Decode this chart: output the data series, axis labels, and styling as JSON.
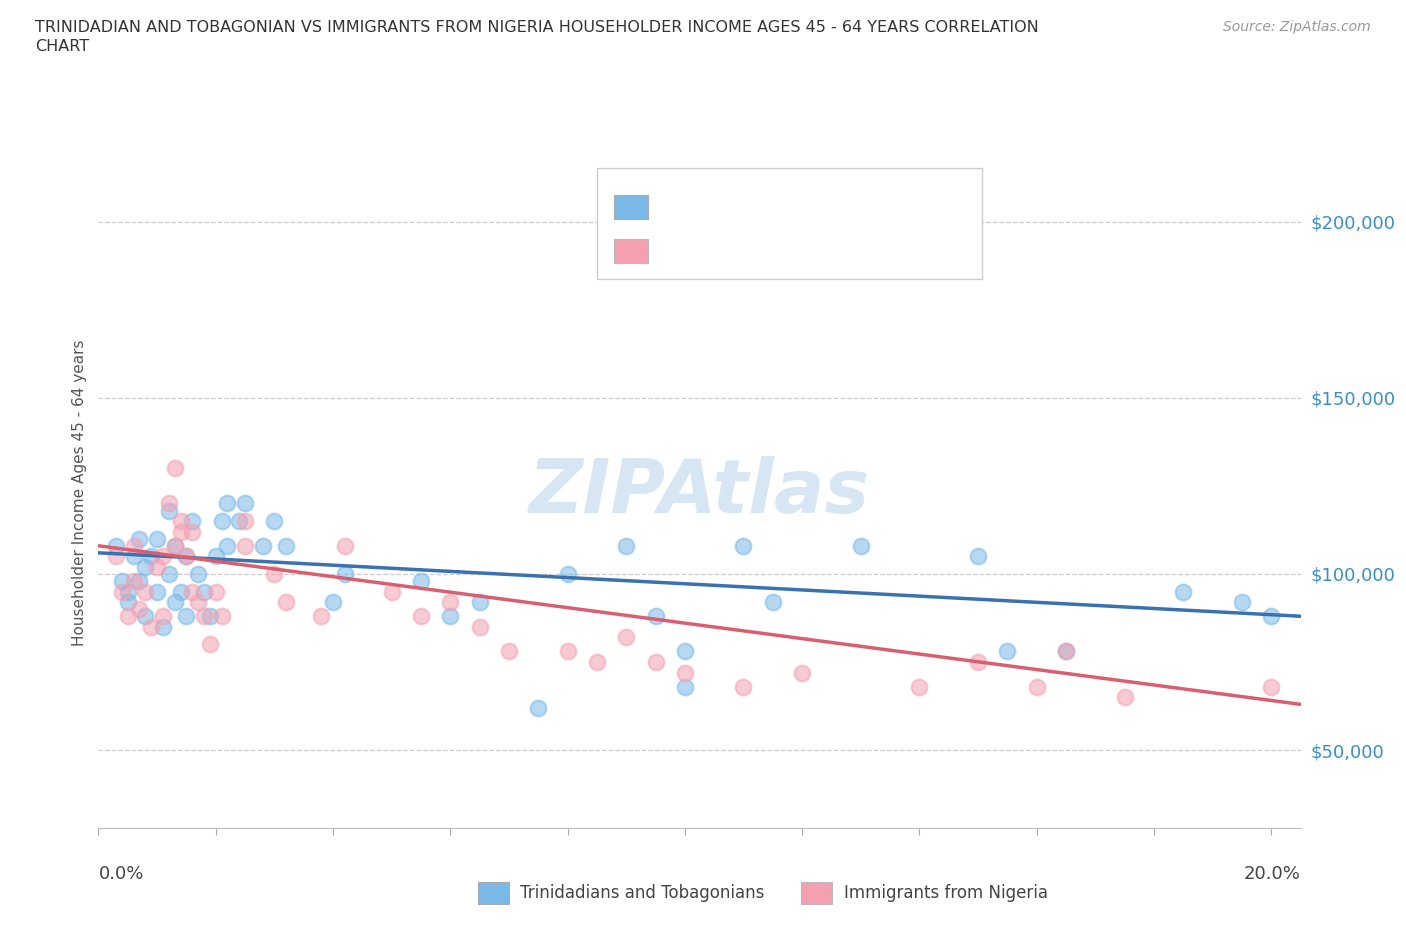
{
  "title_line1": "TRINIDADIAN AND TOBAGONIAN VS IMMIGRANTS FROM NIGERIA HOUSEHOLDER INCOME AGES 45 - 64 YEARS CORRELATION",
  "title_line2": "CHART",
  "source": "Source: ZipAtlas.com",
  "ylabel": "Householder Income Ages 45 - 64 years",
  "xlim": [
    0.0,
    0.205
  ],
  "ylim": [
    28000,
    218000
  ],
  "yticks": [
    50000,
    100000,
    150000,
    200000
  ],
  "ytick_labels": [
    "$50,000",
    "$100,000",
    "$150,000",
    "$200,000"
  ],
  "blue_color": "#7ab8e8",
  "pink_color": "#f4a0b0",
  "blue_line_color": "#3a72b0",
  "pink_line_color": "#d95f70",
  "label_color": "#1a3fa3",
  "watermark_color": "#cde0f0",
  "bottom_label_blue": "Trinidadians and Tobagonians",
  "bottom_label_pink": "Immigrants from Nigeria",
  "blue_x": [
    0.003,
    0.004,
    0.005,
    0.005,
    0.006,
    0.007,
    0.007,
    0.008,
    0.008,
    0.009,
    0.01,
    0.01,
    0.011,
    0.012,
    0.012,
    0.013,
    0.013,
    0.014,
    0.015,
    0.015,
    0.016,
    0.017,
    0.018,
    0.019,
    0.02,
    0.021,
    0.022,
    0.022,
    0.024,
    0.025,
    0.028,
    0.03,
    0.032,
    0.04,
    0.042,
    0.055,
    0.06,
    0.065,
    0.075,
    0.08,
    0.09,
    0.095,
    0.1,
    0.1,
    0.11,
    0.115,
    0.13,
    0.15,
    0.155,
    0.165,
    0.185,
    0.195,
    0.2
  ],
  "blue_y": [
    108000,
    98000,
    92000,
    95000,
    105000,
    98000,
    110000,
    102000,
    88000,
    105000,
    95000,
    110000,
    85000,
    100000,
    118000,
    108000,
    92000,
    95000,
    88000,
    105000,
    115000,
    100000,
    95000,
    88000,
    105000,
    115000,
    120000,
    108000,
    115000,
    120000,
    108000,
    115000,
    108000,
    92000,
    100000,
    98000,
    88000,
    92000,
    62000,
    100000,
    108000,
    88000,
    68000,
    78000,
    108000,
    92000,
    108000,
    105000,
    78000,
    78000,
    95000,
    92000,
    88000
  ],
  "pink_x": [
    0.003,
    0.004,
    0.005,
    0.006,
    0.006,
    0.007,
    0.008,
    0.009,
    0.01,
    0.011,
    0.011,
    0.012,
    0.013,
    0.013,
    0.014,
    0.014,
    0.015,
    0.016,
    0.016,
    0.017,
    0.018,
    0.019,
    0.02,
    0.021,
    0.025,
    0.025,
    0.03,
    0.032,
    0.038,
    0.042,
    0.05,
    0.055,
    0.06,
    0.065,
    0.07,
    0.08,
    0.085,
    0.09,
    0.095,
    0.1,
    0.11,
    0.12,
    0.14,
    0.15,
    0.16,
    0.165,
    0.175,
    0.2
  ],
  "pink_y": [
    105000,
    95000,
    88000,
    108000,
    98000,
    90000,
    95000,
    85000,
    102000,
    88000,
    105000,
    120000,
    108000,
    130000,
    112000,
    115000,
    105000,
    112000,
    95000,
    92000,
    88000,
    80000,
    95000,
    88000,
    115000,
    108000,
    100000,
    92000,
    88000,
    108000,
    95000,
    88000,
    92000,
    85000,
    78000,
    78000,
    75000,
    82000,
    75000,
    72000,
    68000,
    72000,
    68000,
    75000,
    68000,
    78000,
    65000,
    68000
  ]
}
